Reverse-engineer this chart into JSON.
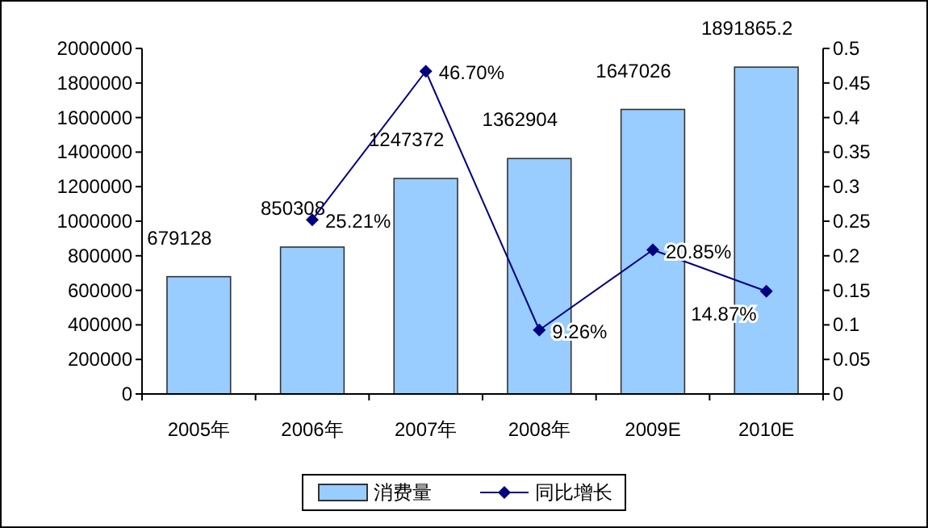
{
  "chart_data": {
    "type": "bar",
    "categories": [
      "2005年",
      "2006年",
      "2007年",
      "2008年",
      "2009E",
      "2010E"
    ],
    "series": [
      {
        "name": "消费量",
        "color": "#99ccff",
        "values": [
          679128,
          850308,
          1247372,
          1362904,
          1647026,
          1891865.2
        ],
        "value_labels": [
          "679128",
          "850308",
          "1247372",
          "1362904",
          "1647026",
          "1891865.2"
        ]
      },
      {
        "name": "同比增长",
        "type": "line",
        "axis": "y2",
        "color": "#000080",
        "marker": "diamond",
        "line_style": "solid",
        "values": [
          null,
          0.2521,
          0.467,
          0.0926,
          0.2085,
          0.1487
        ],
        "value_labels": [
          null,
          "25.21%",
          "46.70%",
          "9.26%",
          "20.85%",
          "14.87%"
        ]
      }
    ],
    "ylim": [
      0,
      2000000
    ],
    "yticks": [
      0,
      200000,
      400000,
      600000,
      800000,
      1000000,
      1200000,
      1400000,
      1600000,
      1800000,
      2000000
    ],
    "y2lim": [
      0,
      0.5
    ],
    "y2ticks": [
      0,
      0.05,
      0.1,
      0.15,
      0.2,
      0.25,
      0.3,
      0.35,
      0.4,
      0.45,
      0.5
    ],
    "legend": "bottom",
    "grid": false
  }
}
